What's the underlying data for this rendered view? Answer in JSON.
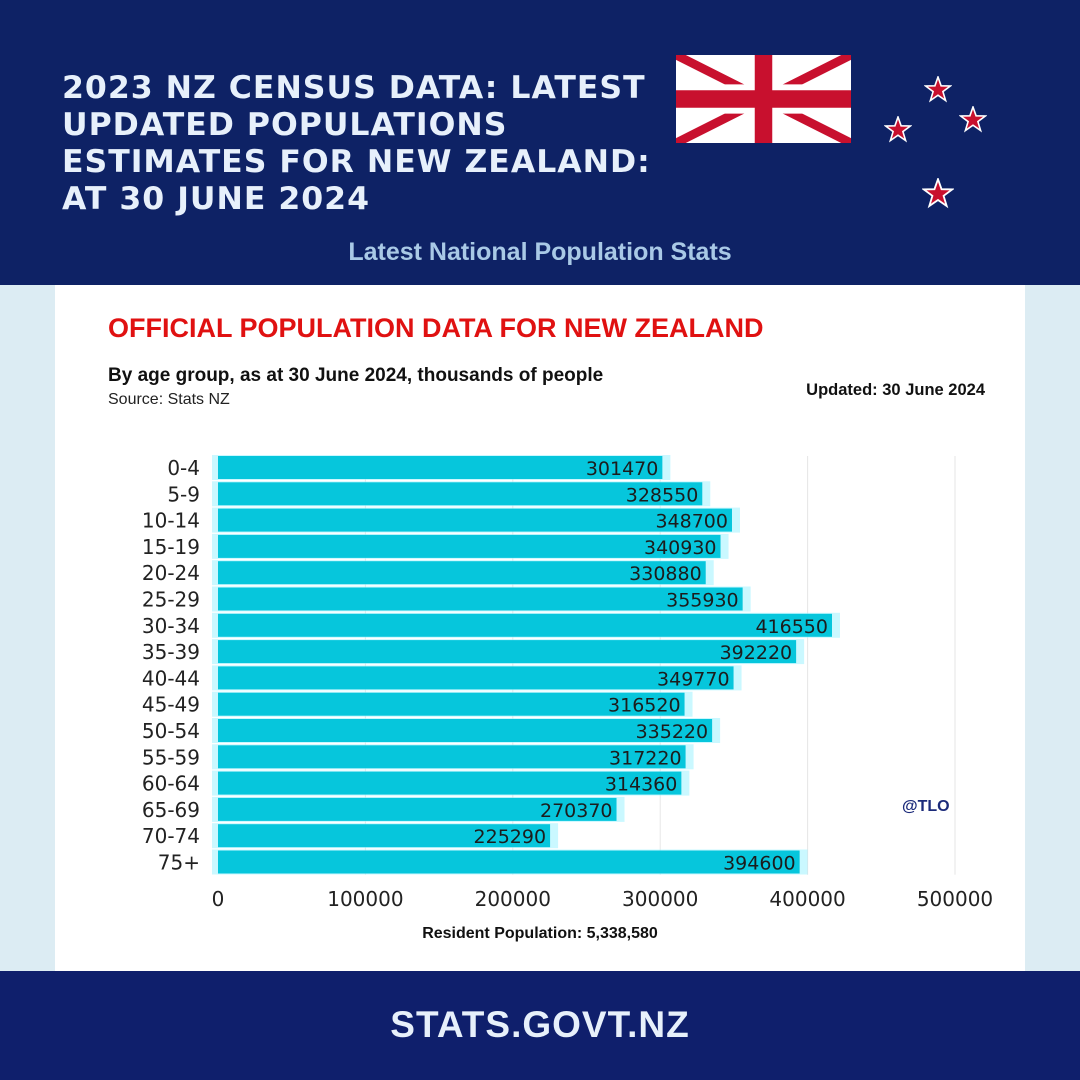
{
  "header": {
    "title": "2023 NZ CENSUS DATA: LATEST\nUPDATED POPULATIONS\nESTIMATES FOR NEW ZEALAND:\nAT 30 JUNE 2024",
    "subtitle": "Latest National Population Stats"
  },
  "card": {
    "title": "OFFICIAL POPULATION DATA FOR NEW ZEALAND",
    "description": "By age group, as at 30 June 2024, thousands of people",
    "source": "Source: Stats NZ",
    "updated": "Updated: 30 June 2024",
    "watermark": "@TLO",
    "total": "Resident Population: 5,338,580"
  },
  "footer": {
    "site": "STATS.GOVT.NZ"
  },
  "colors": {
    "navy": "#0e2265",
    "bar": "#06c6dc",
    "bar_glow": "#9ef2ff",
    "title_red": "#e01111",
    "star_red": "#c8102e"
  },
  "chart_data": {
    "type": "bar",
    "orientation": "horizontal",
    "categories": [
      "0-4",
      "5-9",
      "10-14",
      "15-19",
      "20-24",
      "25-29",
      "30-34",
      "35-39",
      "40-44",
      "45-49",
      "50-54",
      "55-59",
      "60-64",
      "65-69",
      "70-74",
      "75+"
    ],
    "values": [
      301470,
      328550,
      348700,
      340930,
      330880,
      355930,
      416550,
      392220,
      349770,
      316520,
      335220,
      317220,
      314360,
      270370,
      225290,
      394600
    ],
    "xlim": [
      0,
      500000
    ],
    "xticks": [
      "0",
      "100000",
      "200000",
      "300000",
      "400000",
      "500000"
    ],
    "xlabel": "Resident Population: 5,338,580",
    "grid": true
  }
}
